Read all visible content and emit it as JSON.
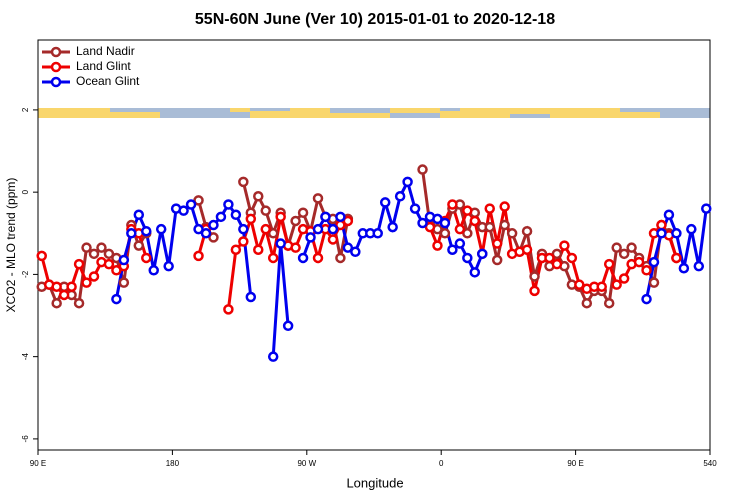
{
  "chart_data": {
    "type": "line",
    "title": "55N-60N June (Ver 10)   2015-01-01 to 2020-12-18",
    "xlabel": "Longitude",
    "ylabel": "XCO2 - MLO trend (ppm)",
    "xlim": [
      90,
      540
    ],
    "xticks": [
      {
        "value": 90,
        "label": "90 E"
      },
      180,
      {
        "value": 270,
        "label": "90 W"
      },
      {
        "value": 360,
        "label": "0"
      },
      {
        "value": 450,
        "label": "90 E"
      },
      540
    ],
    "ylim": [
      -6.27,
      3.7
    ],
    "yticks": [
      -6,
      -4,
      -2,
      0,
      2
    ],
    "legend": "top-left",
    "x": [
      92.5,
      97.5,
      102.5,
      107.5,
      112.5,
      117.5,
      122.5,
      127.5,
      132.5,
      137.5,
      142.5,
      147.5,
      152.5,
      157.5,
      162.5,
      167.5,
      172.5,
      177.5,
      182.5,
      187.5,
      192.5,
      197.5,
      202.5,
      207.5,
      212.5,
      217.5,
      222.5,
      227.5,
      232.5,
      237.5,
      242.5,
      247.5,
      252.5,
      257.5,
      262.5,
      267.5,
      272.5,
      277.5,
      282.5,
      287.5,
      292.5,
      297.5,
      302.5,
      307.5,
      312.5,
      317.5,
      322.5,
      327.5,
      332.5,
      337.5,
      342.5,
      347.5,
      352.5,
      357.5,
      362.5,
      367.5,
      372.5,
      377.5,
      382.5,
      387.5,
      392.5,
      397.5,
      402.5,
      407.5,
      412.5,
      417.5,
      422.5,
      427.5,
      432.5,
      437.5,
      442.5,
      447.5,
      452.5,
      457.5,
      462.5,
      467.5,
      472.5,
      477.5,
      482.5,
      487.5,
      492.5,
      497.5,
      502.5,
      507.5,
      512.5,
      517.5,
      522.5,
      527.5,
      532.5,
      537.5
    ],
    "series": [
      {
        "name": "Land Nadir",
        "color": "#a52a2a",
        "values": [
          -2.3,
          -2.25,
          -2.7,
          -2.3,
          -2.5,
          -2.7,
          -1.35,
          -1.5,
          -1.35,
          -1.5,
          -1.6,
          -2.2,
          -0.8,
          -1.3,
          -1.0,
          null,
          null,
          null,
          null,
          null,
          null,
          -0.2,
          -0.85,
          -1.1,
          null,
          null,
          null,
          0.25,
          -0.5,
          -0.1,
          -0.45,
          -1.0,
          -0.5,
          -1.3,
          -0.7,
          -0.5,
          -0.95,
          -0.15,
          -0.6,
          -0.65,
          -1.6,
          -0.65,
          null,
          null,
          null,
          null,
          null,
          null,
          null,
          null,
          null,
          0.55,
          -0.8,
          -0.9,
          -1.0,
          -0.4,
          -0.3,
          -1.0,
          -0.5,
          -0.85,
          -0.85,
          -1.65,
          -0.8,
          -1.0,
          -1.45,
          -0.95,
          -2.05,
          -1.5,
          -1.8,
          -1.5,
          -1.8,
          -2.25,
          -2.3,
          -2.7,
          -2.4,
          -2.4,
          -2.7,
          -1.35,
          -1.5,
          -1.35,
          -1.6,
          -1.8,
          -2.2,
          -0.8,
          -1.0,
          -1.6,
          null,
          null,
          null,
          null
        ]
      },
      {
        "name": "Land Glint",
        "color": "#ee0000",
        "values": [
          -1.55,
          -2.25,
          -2.3,
          -2.5,
          -2.3,
          -1.75,
          -2.2,
          -2.05,
          -1.7,
          -1.75,
          -1.9,
          -1.8,
          -0.9,
          -1.0,
          -1.6,
          null,
          null,
          null,
          null,
          null,
          null,
          -1.55,
          -0.9,
          null,
          null,
          -2.85,
          -1.4,
          -1.2,
          -0.65,
          -1.4,
          -0.9,
          -1.6,
          -0.6,
          -1.3,
          -1.35,
          -0.9,
          -0.95,
          -1.6,
          -0.9,
          -1.15,
          -0.8,
          -0.7,
          null,
          null,
          null,
          null,
          null,
          null,
          null,
          null,
          null,
          null,
          -0.85,
          -1.3,
          -0.7,
          -0.3,
          -0.9,
          -0.45,
          -0.7,
          -1.5,
          -0.4,
          -1.25,
          -0.35,
          -1.5,
          -1.45,
          -1.4,
          -2.4,
          -1.6,
          -1.6,
          -1.75,
          -1.3,
          -1.6,
          -2.25,
          -2.35,
          -2.3,
          -2.3,
          -1.75,
          -2.25,
          -2.1,
          -1.75,
          -1.7,
          -1.9,
          -1.0,
          -0.8,
          -1.05,
          -1.6,
          null,
          null,
          null,
          null
        ]
      },
      {
        "name": "Ocean Glint",
        "color": "#0000ee",
        "values": [
          null,
          null,
          null,
          null,
          null,
          null,
          null,
          null,
          null,
          null,
          -2.6,
          -1.65,
          -1.0,
          -0.55,
          -0.95,
          -1.9,
          -0.9,
          -1.8,
          -0.4,
          -0.45,
          -0.3,
          -0.9,
          -1.0,
          -0.8,
          -0.6,
          -0.3,
          -0.55,
          -0.9,
          -2.55,
          null,
          null,
          -4.0,
          -1.25,
          -3.25,
          null,
          -1.6,
          -1.1,
          -0.9,
          -0.6,
          -0.9,
          -0.6,
          -1.35,
          -1.45,
          -1.0,
          -1.0,
          -1.0,
          -0.25,
          -0.85,
          -0.1,
          0.25,
          -0.4,
          -0.75,
          -0.6,
          -0.65,
          -0.75,
          -1.4,
          -1.25,
          -1.6,
          -1.95,
          -1.5,
          null,
          null,
          null,
          null,
          null,
          null,
          null,
          null,
          null,
          null,
          null,
          null,
          null,
          null,
          null,
          null,
          null,
          null,
          null,
          null,
          null,
          -2.6,
          -1.7,
          -1.0,
          -0.55,
          -1.0,
          -1.85,
          -0.9,
          -1.8,
          -0.4
        ]
      }
    ]
  }
}
